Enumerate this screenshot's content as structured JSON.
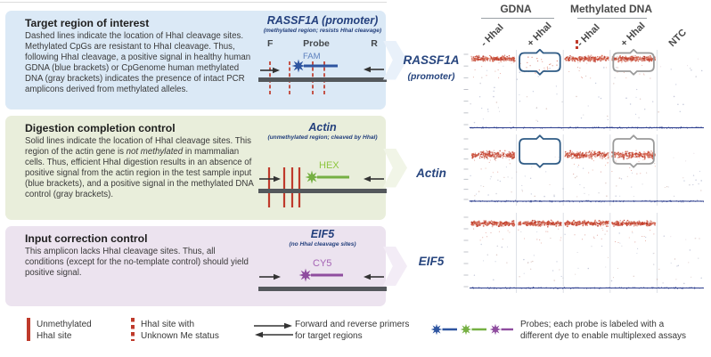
{
  "panels": [
    {
      "heading": "Target region of interest",
      "body": "Dashed lines indicate the location of HhaI cleavage sites. Methylated CpGs are resistant to HhaI cleavage. Thus, following HhaI cleavage, a positive signal in healthy human GDNA (blue brackets) or CpGenome human methylated DNA (gray brackets) indicates the presence of intact PCR amplicons derived from methylated alleles.",
      "diagram": {
        "title": "RASSF1A (promoter)",
        "subtitle": "(methylated region; resists HhaI cleavage)",
        "f_label": "F",
        "probe_label": "Probe",
        "r_label": "R",
        "dye": "FAM"
      }
    },
    {
      "heading": "Digestion completion control",
      "body_parts": {
        "pre": "Solid lines indicate the location of HhaI cleavage sites. This region of the actin gene is ",
        "italic": "not methylated",
        "post": " in mammalian cells. Thus, efficient HhaI digestion results in an absence of positive signal from the actin region in the test sample input (blue brackets), and a positive signal in the methylated DNA control (gray brackets)."
      },
      "diagram": {
        "title": "Actin",
        "subtitle": "(unmethylated region; cleaved by HhaI)",
        "dye": "HEX"
      }
    },
    {
      "heading": "Input correction control",
      "body": "This amplicon lacks HhaI cleavage sites. Thus, all conditions (except for the no-template control) should yield positive signal.",
      "diagram": {
        "title": "EIF5",
        "subtitle": "(no HhaI cleavage sites)",
        "dye": "CY5"
      }
    }
  ],
  "plot": {
    "groups": [
      {
        "label": "GDNA"
      },
      {
        "label": "Methylated DNA"
      }
    ],
    "column_labels": [
      "- HhaI",
      "+ HhaI",
      "- HhaI",
      "+ HhaI",
      "NTC"
    ],
    "rows": [
      {
        "label": "RASSF1A",
        "sublabel": "(promoter)",
        "positive_band": [
          "dense",
          "sparse",
          "dense",
          "dense",
          "none"
        ],
        "brackets": [
          {
            "column": 1,
            "color": "blue"
          },
          {
            "column": 3,
            "color": "gray"
          }
        ]
      },
      {
        "label": "Actin",
        "sublabel": "",
        "positive_band": [
          "dense",
          "none",
          "dense",
          "dense",
          "none"
        ],
        "brackets": [
          {
            "column": 1,
            "color": "blue"
          },
          {
            "column": 3,
            "color": "gray"
          }
        ]
      },
      {
        "label": "EIF5",
        "sublabel": "",
        "positive_band": [
          "dense",
          "dense",
          "dense",
          "dense",
          "none"
        ],
        "brackets": []
      }
    ],
    "bracket_colors": {
      "blue": "#2f5b85",
      "gray": "#9b9b9b"
    },
    "dot_colors": {
      "positive": "#c23a2b",
      "negative": "#2c3e8e"
    }
  },
  "legend": {
    "items": [
      {
        "icon": "solid-red-line",
        "line1": "Unmethylated",
        "line2": "HhaI site"
      },
      {
        "icon": "dashed-red-line",
        "line1": "HhaI site with",
        "line2": "Unknown Me status"
      },
      {
        "icon": "primer-arrows",
        "line1": "Forward and reverse primers",
        "line2": "for target regions"
      },
      {
        "icon": "probe-stars",
        "line1": "Probes; each probe is labeled with a",
        "line2": "different dye to enable multiplexed assays"
      }
    ]
  },
  "colors": {
    "fam_star": "#2e55a0",
    "fam_label": "#5b7fbd",
    "hex_star": "#76b043",
    "hex_label": "#8dc63f",
    "cy5_star": "#8f4d9f",
    "cy5_label": "#a564b5",
    "cleavage_red": "#bf3a2b",
    "panel_blue": "#dbe9f6",
    "panel_green": "#e9eedb",
    "panel_purple": "#ece3ef",
    "row_label_navy": "#27457e"
  }
}
